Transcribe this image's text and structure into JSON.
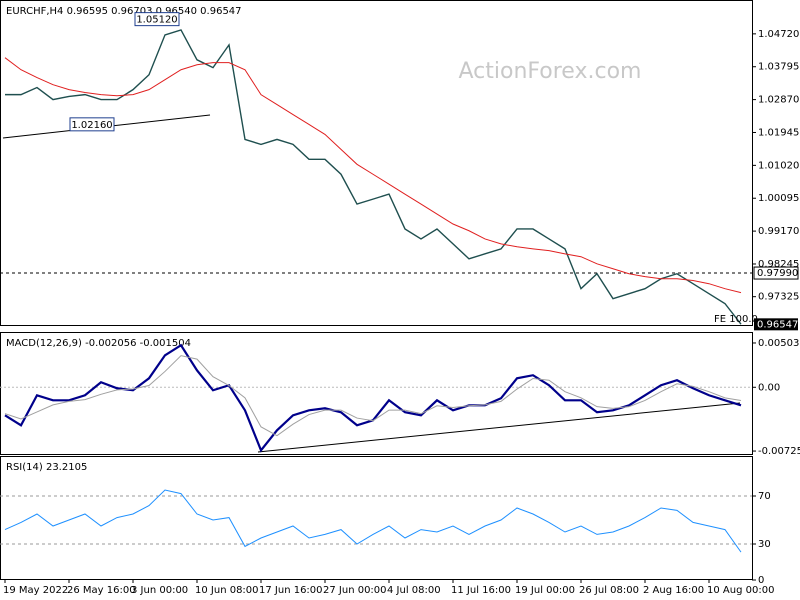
{
  "chart_data": [
    {
      "type": "line",
      "title": "EURCHF,H4 0.96595 0.96703 0.96540 0.96547",
      "watermark": "ActionForex.com",
      "note": "FE 100.0",
      "ylim": [
        0.965,
        1.0556
      ],
      "yticks": [
        {
          "value": 1.0472,
          "label": "1.04720"
        },
        1.03795,
        {
          "value": 1.0287,
          "label": "1.02870"
        },
        1.01945,
        {
          "value": 1.0102,
          "label": "1.01020"
        },
        1.00095,
        {
          "value": 0.9917,
          "label": "0.99170"
        },
        0.98245,
        0.97325
      ],
      "series": [
        {
          "color": "#1f4f4f",
          "values": [
            1.0301,
            1.0301,
            1.0321,
            1.0287,
            1.0296,
            1.0301,
            1.0287,
            1.0287,
            1.0315,
            1.0357,
            1.0469,
            1.0483,
            1.0399,
            1.0377,
            1.0441,
            1.0175,
            1.0161,
            1.0175,
            1.0161,
            1.0119,
            1.0119,
            1.0077,
            0.9993,
            1.0007,
            1.0021,
            0.9923,
            0.9895,
            0.9923,
            0.9881,
            0.9839,
            0.9853,
            0.9867,
            0.9923,
            0.9923,
            0.9895,
            0.9867,
            0.9755,
            0.9797,
            0.9727,
            0.9741,
            0.9755,
            0.9783,
            0.9797,
            0.9769,
            0.9741,
            0.9713,
            0.9655
          ]
        },
        {
          "color": "#e02020",
          "values": [
            1.0405,
            1.0371,
            1.0349,
            1.0329,
            1.0315,
            1.0307,
            1.0301,
            1.0298,
            1.0301,
            1.0315,
            1.0343,
            1.0371,
            1.0385,
            1.0391,
            1.0391,
            1.0371,
            1.0301,
            1.0273,
            1.0245,
            1.0217,
            1.0189,
            1.0147,
            1.0105,
            1.0077,
            1.0049,
            1.0021,
            0.9993,
            0.9965,
            0.9937,
            0.9918,
            0.9895,
            0.9881,
            0.9873,
            0.9867,
            0.9862,
            0.9853,
            0.9845,
            0.9825,
            0.9811,
            0.9797,
            0.9789,
            0.9783,
            0.9783,
            0.9778,
            0.9769,
            0.9755,
            0.9744
          ]
        }
      ],
      "annotations": [
        {
          "value": 1.0512,
          "label": "1.05120"
        },
        {
          "value": 1.0216,
          "label": "1.02160"
        }
      ],
      "hline": {
        "value": 0.9799,
        "label": "0.97990"
      },
      "last_price": {
        "value": 0.96547,
        "label": "0.96547"
      }
    },
    {
      "type": "line",
      "title": "MACD(12,26,9) -0.002056 -0.001504",
      "ylim": [
        -0.0077,
        0.00583
      ],
      "yticks": [
        0.005037,
        {
          "value": 0,
          "label": "0.00"
        },
        -0.007251
      ],
      "series": [
        {
          "color": "#00008b",
          "values": [
            -0.00319,
            -0.00432,
            -0.00091,
            -0.00148,
            -0.00148,
            -0.00091,
            0.00057,
            -0.00011,
            -0.00034,
            0.00102,
            0.00364,
            0.00478,
            0.00193,
            -0.00034,
            0.00023,
            -0.00262,
            -0.00717,
            -0.00489,
            -0.00319,
            -0.00262,
            -0.00239,
            -0.00284,
            -0.00432,
            -0.00375,
            -0.00148,
            -0.00284,
            -0.00319,
            -0.00148,
            -0.00262,
            -0.00205,
            -0.00205,
            -0.00125,
            0.00102,
            0.00137,
            0.00023,
            -0.00148,
            -0.00148,
            -0.00284,
            -0.00262,
            -0.00205,
            -0.00091,
            0.00023,
            0.0008,
            -0.00011,
            -0.00091,
            -0.00148,
            -0.002056
          ]
        },
        {
          "color": "#a0a0a0",
          "values": [
            -0.003,
            -0.0036,
            -0.0028,
            -0.002,
            -0.0016,
            -0.0014,
            -0.0008,
            -0.0003,
            -0.0002,
            0.0002,
            0.0018,
            0.0036,
            0.0032,
            0.0012,
            0.0002,
            -0.0012,
            -0.0045,
            -0.0055,
            -0.0042,
            -0.0031,
            -0.0026,
            -0.0026,
            -0.0035,
            -0.0038,
            -0.0026,
            -0.0026,
            -0.003,
            -0.0021,
            -0.0023,
            -0.0021,
            -0.002,
            -0.0016,
            -0.0002,
            0.001,
            0.0008,
            -0.0005,
            -0.0012,
            -0.0022,
            -0.0024,
            -0.0022,
            -0.0015,
            -0.0005,
            0.0004,
            0.0001,
            -0.0005,
            -0.0012,
            -0.001504
          ]
        }
      ]
    },
    {
      "type": "line",
      "title": "RSI(14) 23.2105",
      "ylim": [
        0,
        100
      ],
      "yticks": [
        0,
        30,
        70
      ],
      "categories": [
        "19 May 2022",
        null,
        null,
        null,
        "26 May 16:00",
        null,
        null,
        null,
        "3 Jun 00:00",
        null,
        null,
        null,
        "10 Jun 08:00",
        null,
        null,
        null,
        "17 Jun 16:00",
        null,
        null,
        null,
        "27 Jun 00:00",
        null,
        null,
        null,
        "4 Jul 08:00",
        null,
        null,
        null,
        "11 Jul 16:00",
        null,
        null,
        null,
        "19 Jul 00:00",
        null,
        null,
        null,
        "26 Jul 08:00",
        null,
        null,
        null,
        "2 Aug 16:00",
        null,
        null,
        null,
        "10 Aug 00:00",
        null,
        null
      ],
      "series": [
        {
          "color": "#1e90ff",
          "values": [
            42,
            48,
            55,
            45,
            50,
            55,
            45,
            52,
            55,
            62,
            75,
            72,
            55,
            50,
            52,
            28,
            35,
            40,
            45,
            35,
            38,
            42,
            30,
            38,
            45,
            35,
            42,
            40,
            45,
            38,
            45,
            50,
            60,
            55,
            48,
            40,
            45,
            38,
            40,
            45,
            52,
            60,
            58,
            48,
            45,
            42,
            23.2105
          ]
        }
      ]
    }
  ]
}
